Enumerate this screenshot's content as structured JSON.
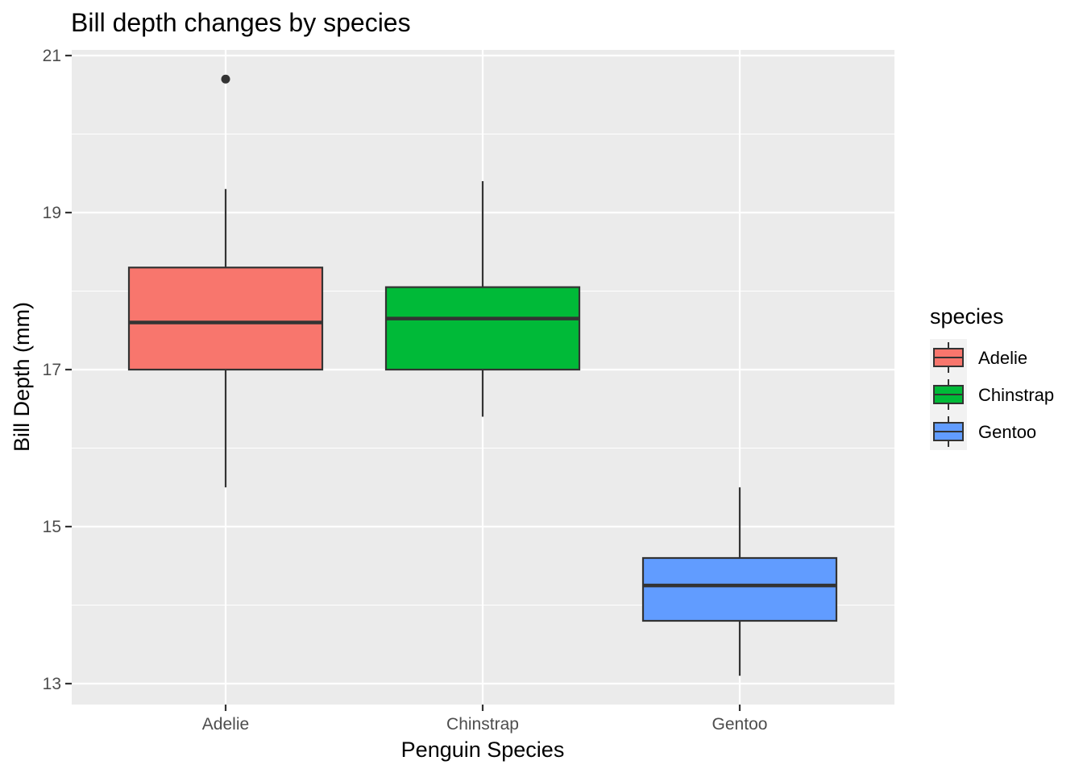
{
  "chart_data": {
    "type": "boxplot",
    "title": "Bill depth changes by species",
    "xlabel": "Penguin Species",
    "ylabel": "Bill Depth (mm)",
    "ylim": [
      12.75,
      21.1
    ],
    "yticks": [
      13,
      15,
      17,
      19,
      21
    ],
    "grid": true,
    "legend": {
      "title": "species",
      "position": "right"
    },
    "categories": [
      "Adelie",
      "Chinstrap",
      "Gentoo"
    ],
    "series": [
      {
        "name": "Adelie",
        "color": "#F8766D",
        "whisker_low": 15.5,
        "q1": 17.0,
        "median": 17.6,
        "q3": 18.3,
        "whisker_high": 19.3,
        "outliers": [
          20.7
        ]
      },
      {
        "name": "Chinstrap",
        "color": "#00BA38",
        "whisker_low": 16.4,
        "q1": 17.0,
        "median": 17.65,
        "q3": 18.05,
        "whisker_high": 19.4,
        "outliers": []
      },
      {
        "name": "Gentoo",
        "color": "#619CFF",
        "whisker_low": 13.1,
        "q1": 13.8,
        "median": 14.25,
        "q3": 14.6,
        "whisker_high": 15.5,
        "outliers": []
      }
    ]
  }
}
